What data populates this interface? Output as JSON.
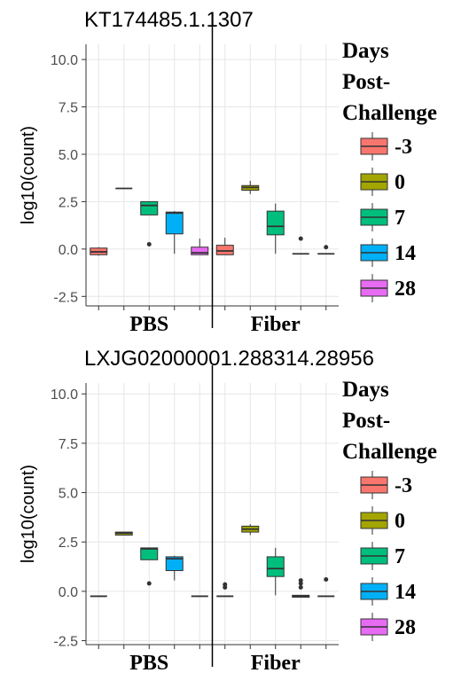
{
  "chart_data": [
    {
      "type": "box",
      "title": "KT174485.1.1307",
      "y_label": "log10(count)",
      "facets": [
        "PBS",
        "Fiber"
      ],
      "legend_title": "Days Post-Challenge",
      "ylim": [
        -3,
        10.8
      ],
      "yticks": [
        {
          "value": 10,
          "label": "10.0"
        },
        7.5,
        {
          "value": 5,
          "label": "5.0"
        },
        2.5,
        {
          "value": 0,
          "label": "0.0"
        },
        -2.5
      ],
      "grid": true,
      "series": [
        {
          "name": "-3",
          "color": "#F8766D",
          "values": [
            {
              "min": -0.35,
              "q1": -0.3,
              "median": -0.15,
              "q3": 0.05,
              "max": 0.1,
              "outliers": []
            },
            {
              "min": -0.3,
              "q1": -0.3,
              "median": -0.1,
              "q3": 0.2,
              "max": 0.6,
              "outliers": []
            }
          ]
        },
        {
          "name": "0",
          "color": "#A3A500",
          "values": [
            {
              "min": 3.2,
              "q1": 3.2,
              "median": 3.2,
              "q3": 3.2,
              "max": 3.2,
              "outliers": []
            },
            {
              "min": 2.9,
              "q1": 3.1,
              "median": 3.25,
              "q3": 3.35,
              "max": 3.6,
              "outliers": []
            }
          ]
        },
        {
          "name": "7",
          "color": "#00BF7D",
          "values": [
            {
              "min": 1.8,
              "q1": 1.8,
              "median": 2.3,
              "q3": 2.5,
              "max": 2.5,
              "outliers": [
                0.25
              ]
            },
            {
              "min": -0.25,
              "q1": 0.75,
              "median": 1.2,
              "q3": 2.0,
              "max": 2.4,
              "outliers": []
            }
          ]
        },
        {
          "name": "14",
          "color": "#00B0F6",
          "values": [
            {
              "min": -0.25,
              "q1": 0.8,
              "median": 1.9,
              "q3": 1.95,
              "max": 2.0,
              "outliers": []
            },
            {
              "min": -0.25,
              "q1": -0.25,
              "median": -0.25,
              "q3": -0.25,
              "max": -0.25,
              "outliers": [
                0.55
              ]
            }
          ]
        },
        {
          "name": "28",
          "color": "#E76BF3",
          "values": [
            {
              "min": -0.3,
              "q1": -0.3,
              "median": -0.2,
              "q3": 0.1,
              "max": 0.55,
              "outliers": []
            },
            {
              "min": -0.25,
              "q1": -0.25,
              "median": -0.25,
              "q3": -0.25,
              "max": -0.25,
              "outliers": [
                0.1
              ]
            }
          ]
        }
      ]
    },
    {
      "type": "box",
      "title": "LXJG02000001.288314.28956",
      "y_label": "log10(count)",
      "facets": [
        "PBS",
        "Fiber"
      ],
      "legend_title": "Days Post-Challenge",
      "ylim": [
        -2.7,
        10.55
      ],
      "yticks": [
        {
          "value": 10,
          "label": "10.0"
        },
        7.5,
        {
          "value": 5,
          "label": "5.0"
        },
        2.5,
        {
          "value": 0,
          "label": "0.0"
        },
        -2.5
      ],
      "grid": true,
      "series": [
        {
          "name": "-3",
          "color": "#F8766D",
          "values": [
            {
              "min": -0.25,
              "q1": -0.25,
              "median": -0.25,
              "q3": -0.25,
              "max": -0.25,
              "outliers": []
            },
            {
              "min": -0.25,
              "q1": -0.25,
              "median": -0.25,
              "q3": -0.25,
              "max": -0.25,
              "outliers": [
                0.2,
                0.35
              ]
            }
          ]
        },
        {
          "name": "0",
          "color": "#A3A500",
          "values": [
            {
              "min": 2.85,
              "q1": 2.85,
              "median": 2.95,
              "q3": 3.0,
              "max": 3.0,
              "outliers": []
            },
            {
              "min": 2.85,
              "q1": 3.0,
              "median": 3.15,
              "q3": 3.3,
              "max": 3.4,
              "outliers": []
            }
          ]
        },
        {
          "name": "7",
          "color": "#00BF7D",
          "values": [
            {
              "min": 1.6,
              "q1": 1.6,
              "median": 2.15,
              "q3": 2.2,
              "max": 2.2,
              "outliers": [
                0.4
              ]
            },
            {
              "min": -0.2,
              "q1": 0.75,
              "median": 1.15,
              "q3": 1.75,
              "max": 2.2,
              "outliers": []
            }
          ]
        },
        {
          "name": "14",
          "color": "#00B0F6",
          "values": [
            {
              "min": 0.55,
              "q1": 1.05,
              "median": 1.65,
              "q3": 1.75,
              "max": 1.8,
              "outliers": []
            },
            {
              "min": -0.3,
              "q1": -0.3,
              "median": -0.25,
              "q3": -0.2,
              "max": -0.2,
              "outliers": [
                0.2,
                0.4,
                0.55
              ]
            }
          ]
        },
        {
          "name": "28",
          "color": "#E76BF3",
          "values": [
            {
              "min": -0.25,
              "q1": -0.25,
              "median": -0.25,
              "q3": -0.25,
              "max": -0.25,
              "outliers": []
            },
            {
              "min": -0.25,
              "q1": -0.25,
              "median": -0.25,
              "q3": -0.25,
              "max": -0.25,
              "outliers": [
                0.6
              ]
            }
          ]
        }
      ]
    }
  ]
}
